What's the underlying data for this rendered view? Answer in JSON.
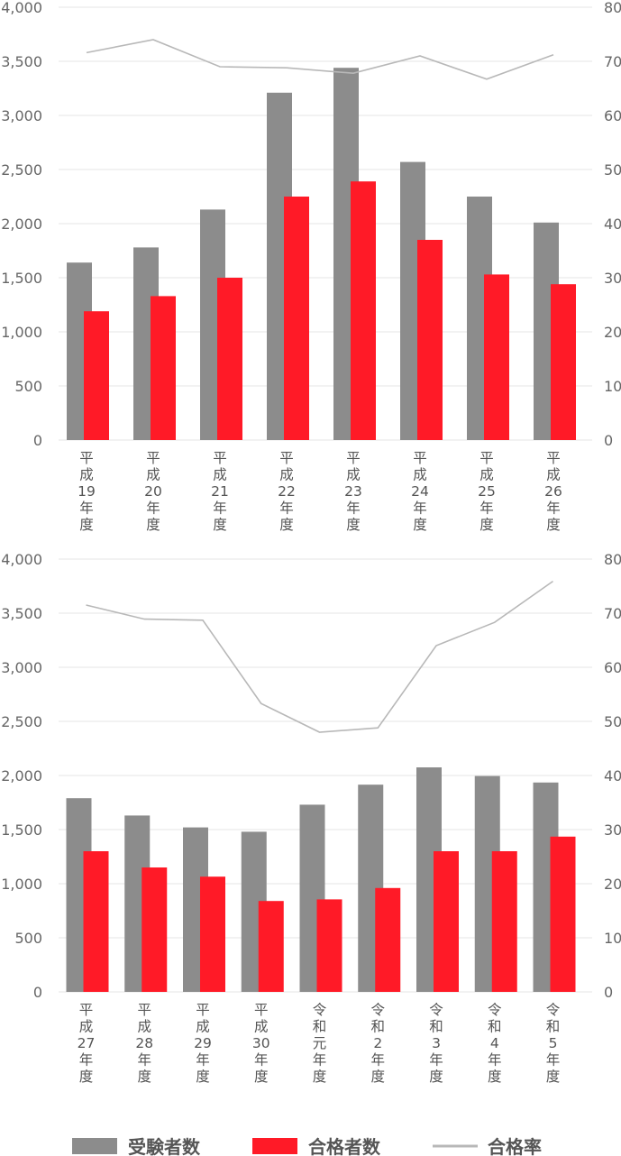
{
  "colors": {
    "applicants": "#8c8c8c",
    "passers": "#ff1a27",
    "rate": "#b8b8b8",
    "grid": "#e6e6e6",
    "text": "#666666"
  },
  "legend": {
    "applicants": "受験者数",
    "passers": "合格者数",
    "rate": "合格率"
  },
  "chart_data": [
    {
      "type": "bar",
      "categories": [
        "平成19年度",
        "平成20年度",
        "平成21年度",
        "平成22年度",
        "平成23年度",
        "平成24年度",
        "平成25年度",
        "平成26年度"
      ],
      "category_lines": [
        [
          "平",
          "成",
          "19",
          "年",
          "度"
        ],
        [
          "平",
          "成",
          "20",
          "年",
          "度"
        ],
        [
          "平",
          "成",
          "21",
          "年",
          "度"
        ],
        [
          "平",
          "成",
          "22",
          "年",
          "度"
        ],
        [
          "平",
          "成",
          "23",
          "年",
          "度"
        ],
        [
          "平",
          "成",
          "24",
          "年",
          "度"
        ],
        [
          "平",
          "成",
          "25",
          "年",
          "度"
        ],
        [
          "平",
          "成",
          "26",
          "年",
          "度"
        ]
      ],
      "series": [
        {
          "name": "受験者数",
          "type": "bar",
          "axis": "left",
          "values": [
            1640,
            1780,
            2130,
            3210,
            3440,
            2570,
            2250,
            2010
          ]
        },
        {
          "name": "合格者数",
          "type": "bar",
          "axis": "left",
          "values": [
            1190,
            1330,
            1500,
            2250,
            2390,
            1850,
            1530,
            1440
          ]
        },
        {
          "name": "合格率",
          "type": "line",
          "axis": "right",
          "values": [
            71.6,
            74.0,
            69.0,
            68.8,
            67.8,
            71.0,
            66.7,
            71.2
          ]
        }
      ],
      "ylim": [
        0,
        4000
      ],
      "yticks": [
        "0",
        "500",
        "1,000",
        "1,500",
        "2,000",
        "2,500",
        "3,000",
        "3,500",
        "4,000"
      ],
      "y2lim": [
        0,
        80
      ],
      "y2ticks": [
        "0",
        "10",
        "20",
        "30",
        "40",
        "50",
        "60",
        "70",
        "80"
      ]
    },
    {
      "type": "bar",
      "categories": [
        "平成27年度",
        "平成28年度",
        "平成29年度",
        "平成30年度",
        "令和元年度",
        "令和2年度",
        "令和3年度",
        "令和4年度",
        "令和5年度"
      ],
      "category_lines": [
        [
          "平",
          "成",
          "27",
          "年",
          "度"
        ],
        [
          "平",
          "成",
          "28",
          "年",
          "度"
        ],
        [
          "平",
          "成",
          "29",
          "年",
          "度"
        ],
        [
          "平",
          "成",
          "30",
          "年",
          "度"
        ],
        [
          "令",
          "和",
          "元",
          "年",
          "度"
        ],
        [
          "令",
          "和",
          "2",
          "年",
          "度"
        ],
        [
          "令",
          "和",
          "3",
          "年",
          "度"
        ],
        [
          "令",
          "和",
          "4",
          "年",
          "度"
        ],
        [
          "令",
          "和",
          "5",
          "年",
          "度"
        ]
      ],
      "series": [
        {
          "name": "受験者数",
          "type": "bar",
          "axis": "left",
          "values": [
            1790,
            1630,
            1520,
            1480,
            1730,
            1915,
            2075,
            1995,
            1935
          ]
        },
        {
          "name": "合格者数",
          "type": "bar",
          "axis": "left",
          "values": [
            1300,
            1150,
            1065,
            840,
            855,
            960,
            1300,
            1300,
            1435
          ]
        },
        {
          "name": "合格率",
          "type": "line",
          "axis": "right",
          "values": [
            71.5,
            68.9,
            68.7,
            53.3,
            48.0,
            48.8,
            64.0,
            68.3,
            75.9
          ]
        }
      ],
      "ylim": [
        0,
        4000
      ],
      "yticks": [
        "0",
        "500",
        "1,000",
        "1,500",
        "2,000",
        "2,500",
        "3,000",
        "3,500",
        "4,000"
      ],
      "y2lim": [
        0,
        80
      ],
      "y2ticks": [
        "0",
        "10",
        "20",
        "30",
        "40",
        "50",
        "60",
        "70",
        "80"
      ]
    }
  ]
}
